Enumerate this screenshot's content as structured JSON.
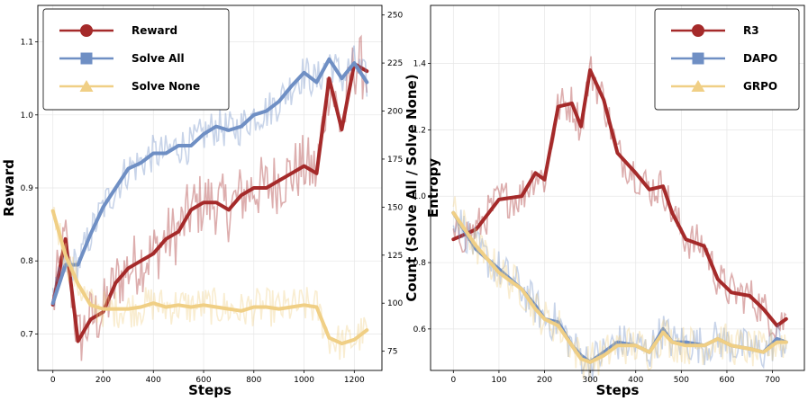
{
  "chart_data": [
    {
      "type": "line",
      "x": [
        0,
        50,
        100,
        150,
        200,
        250,
        300,
        350,
        400,
        450,
        500,
        550,
        600,
        650,
        700,
        750,
        800,
        850,
        900,
        950,
        1000,
        1050,
        1100,
        1150,
        1200,
        1250
      ],
      "series": [
        {
          "name": "Reward",
          "axis": "left",
          "color": "#a52a2a",
          "marker": "circle",
          "values": [
            0.74,
            0.83,
            0.69,
            0.72,
            0.73,
            0.77,
            0.79,
            0.8,
            0.81,
            0.83,
            0.84,
            0.87,
            0.88,
            0.88,
            0.87,
            0.89,
            0.9,
            0.9,
            0.91,
            0.92,
            0.93,
            0.92,
            1.05,
            0.98,
            1.07,
            1.06
          ]
        },
        {
          "name": "Solve All",
          "axis": "right",
          "color": "#6f8fc4",
          "marker": "square",
          "values": [
            100,
            120,
            120,
            136,
            150,
            160,
            170,
            173,
            178,
            178,
            182,
            182,
            188,
            192,
            190,
            192,
            198,
            200,
            205,
            213,
            220,
            215,
            227,
            217,
            225,
            215
          ]
        },
        {
          "name": "Solve None",
          "axis": "right",
          "color": "#f0cf85",
          "marker": "triangle",
          "values": [
            148,
            125,
            110,
            99,
            97,
            97,
            97,
            98,
            100,
            98,
            99,
            98,
            99,
            98,
            97,
            96,
            98,
            98,
            97,
            98,
            99,
            98,
            82,
            79,
            81,
            86
          ]
        }
      ],
      "title": "",
      "xlabel": "Steps",
      "ylabel": "Reward",
      "ylabel_right": "Count (Solve All / Solve None)",
      "xlim": [
        -60,
        1310
      ],
      "ylim": [
        0.65,
        1.15
      ],
      "ylim_right": [
        65,
        255
      ],
      "xticks": [
        0,
        200,
        400,
        600,
        800,
        1000,
        1200
      ],
      "yticks": [
        0.7,
        0.8,
        0.9,
        1.0,
        1.1
      ],
      "yticks_right": [
        75,
        100,
        125,
        150,
        175,
        200,
        225,
        250
      ],
      "grid": true,
      "legend": "top-left"
    },
    {
      "type": "line",
      "x": [
        0,
        50,
        100,
        150,
        180,
        200,
        230,
        260,
        280,
        300,
        330,
        360,
        400,
        430,
        460,
        480,
        510,
        550,
        580,
        610,
        650,
        680,
        710,
        730
      ],
      "series": [
        {
          "name": "R3",
          "color": "#a52a2a",
          "marker": "circle",
          "values": [
            0.87,
            0.9,
            0.99,
            1.0,
            1.07,
            1.05,
            1.27,
            1.28,
            1.21,
            1.38,
            1.29,
            1.13,
            1.07,
            1.02,
            1.03,
            0.95,
            0.87,
            0.85,
            0.75,
            0.71,
            0.7,
            0.66,
            0.61,
            0.63
          ]
        },
        {
          "name": "DAPO",
          "color": "#6f8fc4",
          "marker": "square",
          "values": [
            0.95,
            0.84,
            0.78,
            0.72,
            0.67,
            0.63,
            0.62,
            0.55,
            0.52,
            0.5,
            0.53,
            0.56,
            0.55,
            0.53,
            0.6,
            0.56,
            0.56,
            0.55,
            0.57,
            0.55,
            0.54,
            0.53,
            0.57,
            0.56
          ]
        },
        {
          "name": "GRPO",
          "color": "#f0cf85",
          "marker": "triangle",
          "values": [
            0.95,
            0.85,
            0.77,
            0.72,
            0.66,
            0.63,
            0.61,
            0.55,
            0.51,
            0.5,
            0.52,
            0.55,
            0.55,
            0.53,
            0.59,
            0.56,
            0.55,
            0.55,
            0.57,
            0.55,
            0.54,
            0.53,
            0.56,
            0.56
          ]
        }
      ],
      "title": "",
      "xlabel": "Steps",
      "ylabel": "Entropy",
      "xlim": [
        -50,
        770
      ],
      "ylim": [
        0.475,
        1.575
      ],
      "xticks": [
        0,
        100,
        200,
        300,
        400,
        500,
        600,
        700
      ],
      "yticks": [
        0.6,
        0.8,
        1.0,
        1.2,
        1.4
      ],
      "grid": true,
      "legend": "top-right"
    }
  ]
}
